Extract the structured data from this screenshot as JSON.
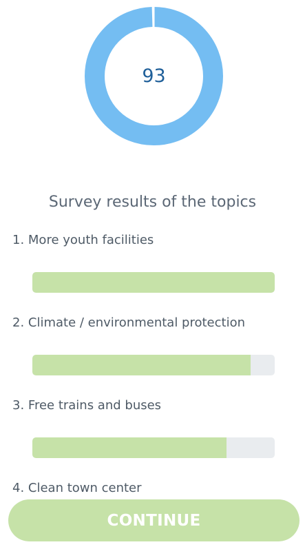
{
  "score": {
    "value": "93",
    "fraction": 0.995,
    "ring_color": "#74bdf2",
    "value_color": "#1f5f99"
  },
  "survey": {
    "title": "Survey results of the topics",
    "topics": [
      {
        "label": "1. More youth facilities",
        "fraction": 1.0
      },
      {
        "label": "2. Climate / environmental protection",
        "fraction": 0.9
      },
      {
        "label": "3. Free trains and buses",
        "fraction": 0.8
      },
      {
        "label": "4. Clean town center",
        "fraction": null
      }
    ],
    "bar_fill_color": "#c6e2a8",
    "bar_track_color": "#e9ecef"
  },
  "footer": {
    "continue_label": "CONTINUE",
    "button_color": "#c6e2a8"
  }
}
